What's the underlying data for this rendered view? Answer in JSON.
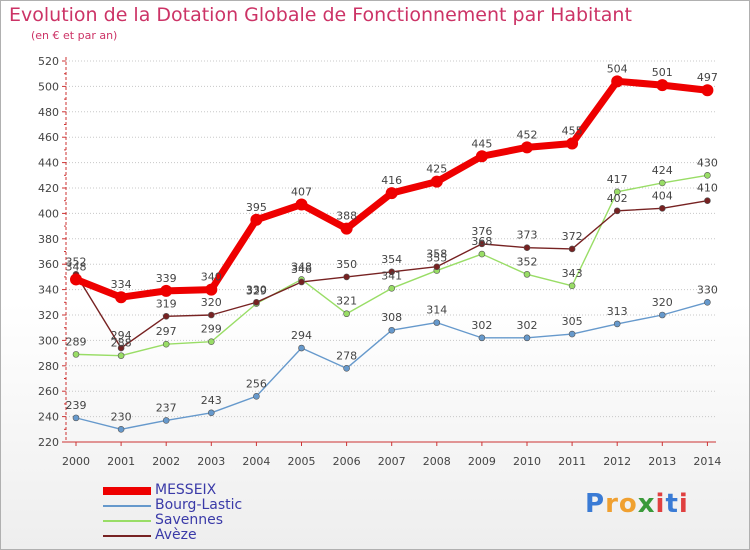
{
  "header": {
    "title": "Evolution de la Dotation Globale de Fonctionnement par Habitant",
    "subtitle": "(en € et par an)"
  },
  "brand": {
    "text": "Proxiti",
    "letters": [
      "P",
      "r",
      "o",
      "x",
      "i",
      "t",
      "i"
    ],
    "colors": [
      "#3a7bd5",
      "#f0a030",
      "#f0a030",
      "#3a9a3a",
      "#e04040",
      "#3a7bd5",
      "#e04040"
    ]
  },
  "chart_data": {
    "type": "line",
    "title": "Evolution de la Dotation Globale de Fonctionnement par Habitant",
    "subtitle": "(en € et par an)",
    "xlabel": "",
    "ylabel": "",
    "x": [
      2000,
      2001,
      2002,
      2003,
      2004,
      2005,
      2006,
      2007,
      2008,
      2009,
      2010,
      2011,
      2012,
      2013,
      2014
    ],
    "yticks": [
      220,
      240,
      260,
      280,
      300,
      320,
      340,
      360,
      380,
      400,
      420,
      440,
      460,
      480,
      500,
      520
    ],
    "ylim": [
      220,
      520
    ],
    "grid": "horizontal dotted",
    "legend": "bottom-left",
    "series": [
      {
        "name": "MESSEIX",
        "color": "#ee0000",
        "emphasis": true,
        "values": [
          348,
          334,
          339,
          340,
          395,
          407,
          388,
          416,
          425,
          445,
          452,
          455,
          504,
          501,
          497
        ],
        "labels": [
          "348",
          "334",
          "339",
          "340",
          "395",
          "407",
          "388",
          "416",
          "425",
          "445",
          "452",
          "455",
          "504",
          "501",
          "497"
        ]
      },
      {
        "name": "Bourg-Lastic",
        "color": "#6699cc",
        "values": [
          239,
          230,
          237,
          243,
          256,
          294,
          278,
          308,
          314,
          302,
          302,
          305,
          313,
          320,
          330
        ],
        "labels": [
          "239",
          "230",
          "237",
          "243",
          "256",
          "294",
          "278",
          "308",
          "314",
          "302",
          "302",
          "305",
          "313",
          "320",
          "330"
        ]
      },
      {
        "name": "Savennes",
        "color": "#99dd66",
        "values": [
          289,
          288,
          297,
          299,
          329,
          348,
          321,
          341,
          355,
          368,
          352,
          343,
          417,
          424,
          430
        ],
        "labels": [
          "289",
          "288",
          "297",
          "299",
          "329",
          "348",
          "321",
          "341",
          "355",
          "368",
          "352",
          "343",
          "417",
          "424",
          "430"
        ]
      },
      {
        "name": "Avèze",
        "color": "#772222",
        "values": [
          352,
          294,
          319,
          320,
          330,
          346,
          350,
          354,
          358,
          376,
          373,
          372,
          402,
          404,
          410
        ],
        "labels": [
          "352",
          "294",
          "319",
          "320",
          "330",
          "346",
          "350",
          "354",
          "358",
          "376",
          "373",
          "372",
          "402",
          "404",
          "410"
        ]
      }
    ]
  }
}
